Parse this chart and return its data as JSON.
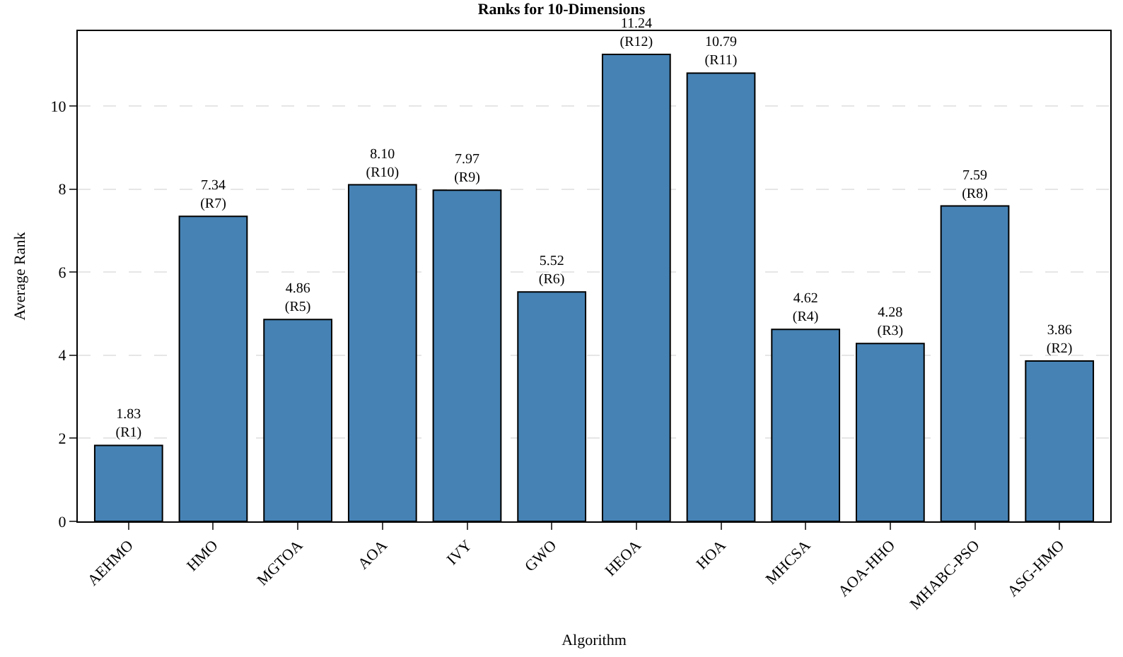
{
  "chart_data": {
    "type": "bar",
    "title": "Ranks for 10-Dimensions",
    "xlabel": "Algorithm",
    "ylabel": "Average Rank",
    "categories": [
      "AEHMO",
      "HMO",
      "MGTOA",
      "AOA",
      "IVY",
      "GWO",
      "HEOA",
      "HOA",
      "MHCSA",
      "AOA-HHO",
      "MHABC-PSO",
      "ASG-HMO"
    ],
    "values": [
      1.83,
      7.34,
      4.86,
      8.1,
      7.97,
      5.52,
      11.24,
      10.79,
      4.62,
      4.28,
      7.59,
      3.86
    ],
    "value_labels": [
      "1.83\n(R1)",
      "7.34\n(R7)",
      "4.86\n(R5)",
      "8.10\n(R10)",
      "7.97\n(R9)",
      "5.52\n(R6)",
      "11.24\n(R12)",
      "10.79\n(R11)",
      "4.62\n(R4)",
      "4.28\n(R3)",
      "7.59\n(R8)",
      "3.86\n(R2)"
    ],
    "color": "#4682b4",
    "ylim": [
      0,
      11.8
    ],
    "yticks": [
      0,
      2,
      4,
      6,
      8,
      10
    ],
    "grid": "y"
  }
}
